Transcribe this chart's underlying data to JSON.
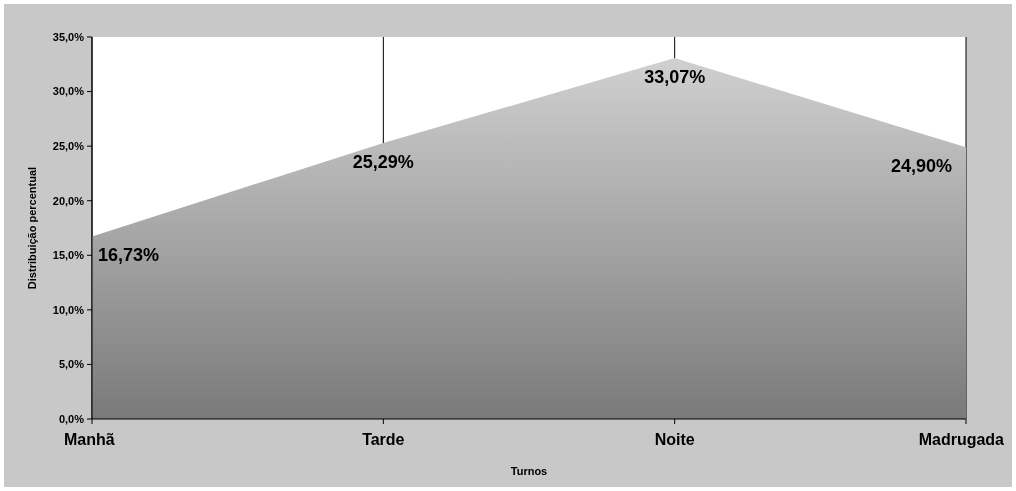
{
  "chart_data": {
    "type": "area",
    "xlabel": "Turnos",
    "ylabel": "Distribuição percentual",
    "categories": [
      "Manhã",
      "Tarde",
      "Noite",
      "Madrugada"
    ],
    "series": [
      {
        "color": "#a8a8a8",
        "values": [
          16.73,
          25.29,
          33.07,
          24.9
        ],
        "value_labels": [
          "16,73%",
          "25,29%",
          "33,07%",
          "24,90%"
        ]
      }
    ],
    "ylim": [
      0,
      35
    ],
    "yticks": [
      {
        "value": 0,
        "label": "0,0%"
      },
      {
        "value": 5,
        "label": "5,0%"
      },
      {
        "value": 10,
        "label": "10,0%"
      },
      {
        "value": 15,
        "label": "15,0%"
      },
      {
        "value": 20,
        "label": "20,0%"
      },
      {
        "value": 25,
        "label": "25,0%"
      },
      {
        "value": 30,
        "label": "30,0%"
      },
      {
        "value": 35,
        "label": "35,0%"
      }
    ],
    "grid": "x"
  }
}
